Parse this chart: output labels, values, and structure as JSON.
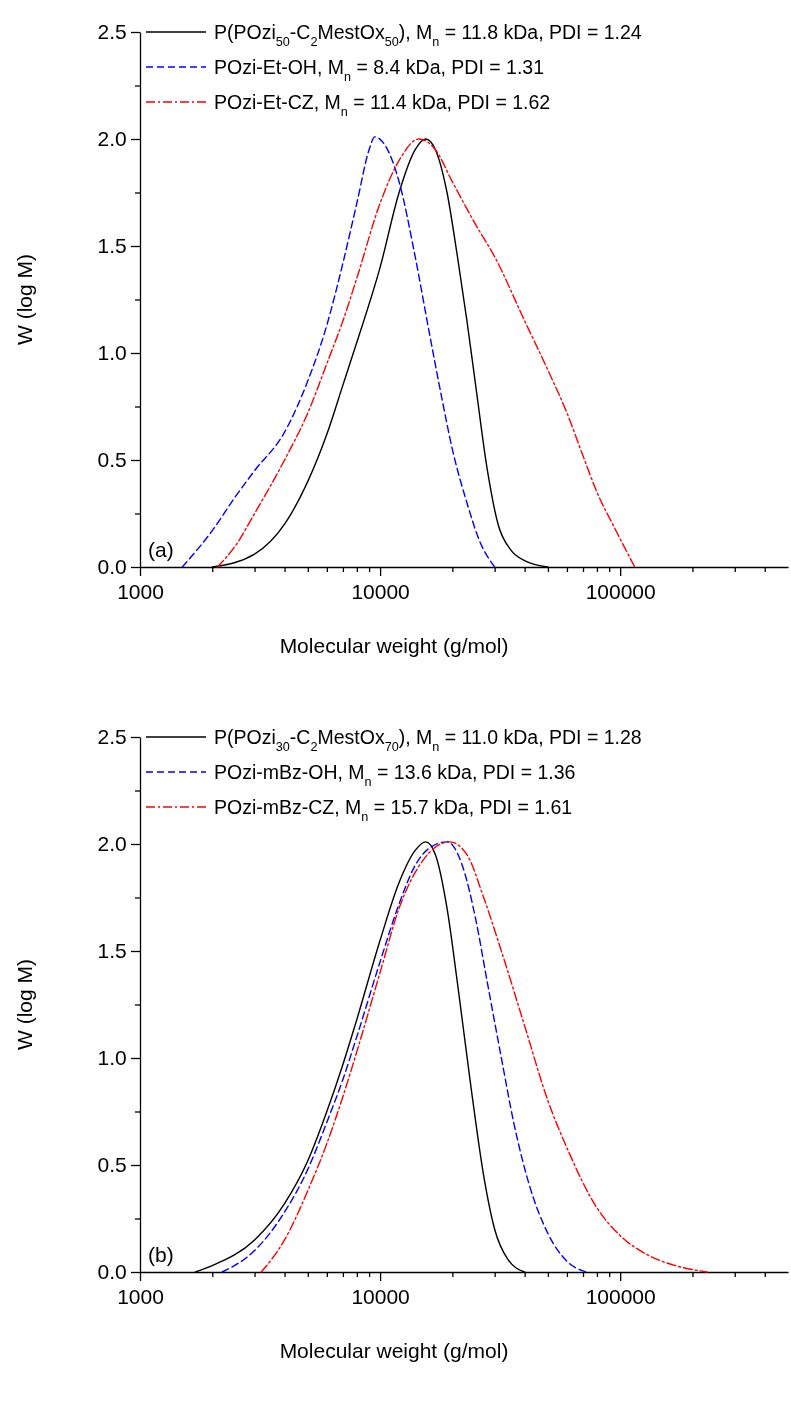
{
  "chart_data": [
    {
      "type": "line",
      "xlabel": "Molecular weight (g/mol)",
      "ylabel": "W (log M)",
      "log": "x",
      "xlim": [
        1000,
        500000
      ],
      "xticks": [
        1000,
        {
          "value": 2000,
          "label": null
        },
        {
          "value": 3000,
          "label": null
        },
        {
          "value": 4000,
          "label": null
        },
        {
          "value": 5000,
          "label": null
        },
        {
          "value": 6000,
          "label": null
        },
        {
          "value": 7000,
          "label": null
        },
        {
          "value": 8000,
          "label": null
        },
        {
          "value": 9000,
          "label": null
        },
        10000,
        {
          "value": 20000,
          "label": null
        },
        {
          "value": 30000,
          "label": null
        },
        {
          "value": 40000,
          "label": null
        },
        {
          "value": 50000,
          "label": null
        },
        {
          "value": 60000,
          "label": null
        },
        {
          "value": 70000,
          "label": null
        },
        {
          "value": 80000,
          "label": null
        },
        {
          "value": 90000,
          "label": null
        },
        100000,
        {
          "value": 200000,
          "label": null
        },
        {
          "value": 300000,
          "label": null
        },
        {
          "value": 400000,
          "label": null
        }
      ],
      "ylim": [
        0,
        2.5
      ],
      "yticks": [
        {
          "value": 0,
          "label": "0.0"
        },
        {
          "value": 0.25,
          "label": null
        },
        {
          "value": 0.5,
          "label": "0.5"
        },
        {
          "value": 0.75,
          "label": null
        },
        {
          "value": 1,
          "label": "1.0"
        },
        {
          "value": 1.25,
          "label": null
        },
        {
          "value": 1.5,
          "label": "1.5"
        },
        {
          "value": 1.75,
          "label": null
        },
        {
          "value": 2,
          "label": "2.0"
        },
        {
          "value": 2.25,
          "label": null
        },
        {
          "value": 2.5,
          "label": "2.5"
        }
      ],
      "grid": false,
      "legend": "top left",
      "marker": "none",
      "annotations": [
        "(a)"
      ],
      "series": [
        {
          "name": "P(POzi$_{50}$-C$_{2}$MestOx$_{50}$), M$_{n}$ = 11.8 kDa, PDI = 1.24",
          "color": "#000000",
          "line_style": "solid",
          "x": [
            2000,
            3000,
            4000,
            5000,
            6000,
            7000,
            8000,
            10000,
            12000,
            14000,
            15500,
            17000,
            19000,
            21000,
            23000,
            25000,
            28000,
            31000,
            35000,
            40000,
            50000
          ],
          "values": [
            0,
            0.06,
            0.2,
            0.4,
            0.62,
            0.85,
            1.05,
            1.4,
            1.75,
            1.95,
            2.0,
            1.95,
            1.75,
            1.45,
            1.15,
            0.85,
            0.45,
            0.2,
            0.08,
            0.03,
            0
          ]
        },
        {
          "name": "POzi-Et-OH, M$_{n}$ = 8.4 kDa, PDI = 1.31",
          "color": "#0000ff",
          "line_style": "dashed",
          "x": [
            1500,
            2000,
            2500,
            3000,
            4000,
            5000,
            6000,
            7000,
            8000,
            9000,
            9500,
            10500,
            12000,
            14000,
            16000,
            18000,
            20000,
            23000,
            26000,
            30000
          ],
          "values": [
            0,
            0.17,
            0.33,
            0.45,
            0.63,
            0.87,
            1.13,
            1.42,
            1.7,
            1.95,
            2.01,
            1.97,
            1.8,
            1.45,
            1.1,
            0.8,
            0.55,
            0.3,
            0.12,
            0
          ]
        },
        {
          "name": "POzi-Et-CZ,  M$_{n}$ = 11.4 kDa, PDI = 1.62",
          "color": "#ff0000",
          "line_style": "dashdot",
          "x": [
            2100,
            2500,
            3000,
            4000,
            5000,
            6000,
            7000,
            8000,
            10000,
            12000,
            14500,
            17000,
            20000,
            25000,
            30000,
            40000,
            50000,
            60000,
            70000,
            80000,
            95000,
            115000
          ],
          "values": [
            0,
            0.1,
            0.25,
            0.5,
            0.72,
            0.95,
            1.15,
            1.35,
            1.7,
            1.9,
            2.0,
            1.95,
            1.8,
            1.6,
            1.45,
            1.15,
            0.92,
            0.72,
            0.52,
            0.35,
            0.18,
            0
          ]
        }
      ]
    },
    {
      "type": "line",
      "xlabel": "Molecular weight (g/mol)",
      "ylabel": "W (log M)",
      "log": "x",
      "xlim": [
        1000,
        500000
      ],
      "xticks": [
        1000,
        {
          "value": 2000,
          "label": null
        },
        {
          "value": 3000,
          "label": null
        },
        {
          "value": 4000,
          "label": null
        },
        {
          "value": 5000,
          "label": null
        },
        {
          "value": 6000,
          "label": null
        },
        {
          "value": 7000,
          "label": null
        },
        {
          "value": 8000,
          "label": null
        },
        {
          "value": 9000,
          "label": null
        },
        10000,
        {
          "value": 20000,
          "label": null
        },
        {
          "value": 30000,
          "label": null
        },
        {
          "value": 40000,
          "label": null
        },
        {
          "value": 50000,
          "label": null
        },
        {
          "value": 60000,
          "label": null
        },
        {
          "value": 70000,
          "label": null
        },
        {
          "value": 80000,
          "label": null
        },
        {
          "value": 90000,
          "label": null
        },
        100000,
        {
          "value": 200000,
          "label": null
        },
        {
          "value": 300000,
          "label": null
        },
        {
          "value": 400000,
          "label": null
        }
      ],
      "ylim": [
        0,
        2.5
      ],
      "yticks": [
        {
          "value": 0,
          "label": "0.0"
        },
        {
          "value": 0.25,
          "label": null
        },
        {
          "value": 0.5,
          "label": "0.5"
        },
        {
          "value": 0.75,
          "label": null
        },
        {
          "value": 1,
          "label": "1.0"
        },
        {
          "value": 1.25,
          "label": null
        },
        {
          "value": 1.5,
          "label": "1.5"
        },
        {
          "value": 1.75,
          "label": null
        },
        {
          "value": 2,
          "label": "2.0"
        },
        {
          "value": 2.25,
          "label": null
        },
        {
          "value": 2.5,
          "label": "2.5"
        }
      ],
      "grid": false,
      "legend": "top left",
      "marker": "none",
      "annotations": [
        "(b)"
      ],
      "series": [
        {
          "name": "P(POzi$_{30}$-C$_{2}$MestOx$_{70}$), M$_{n}$ = 11.0 kDa, PDI = 1.28",
          "color": "#000000",
          "line_style": "solid",
          "x": [
            1700,
            2000,
            3000,
            4000,
            5000,
            6000,
            7000,
            8000,
            10000,
            12000,
            14000,
            15500,
            17000,
            19000,
            21000,
            24000,
            27000,
            30000,
            34000,
            40000
          ],
          "values": [
            0,
            0.03,
            0.15,
            0.32,
            0.52,
            0.75,
            0.97,
            1.18,
            1.55,
            1.82,
            1.97,
            2.01,
            1.95,
            1.7,
            1.35,
            0.85,
            0.45,
            0.2,
            0.06,
            0
          ]
        },
        {
          "name": "POzi-mBz-OH, M$_{n}$ = 13.6 kDa, PDI = 1.36",
          "color": "#0000ff",
          "line_style": "dashed",
          "x": [
            2200,
            3000,
            4000,
            5000,
            6000,
            7000,
            8000,
            10000,
            12000,
            14000,
            16000,
            19000,
            22000,
            25000,
            28000,
            32000,
            36000,
            42000,
            50000,
            60000,
            72000
          ],
          "values": [
            0,
            0.1,
            0.28,
            0.48,
            0.7,
            0.9,
            1.1,
            1.45,
            1.72,
            1.9,
            1.98,
            2.01,
            1.9,
            1.65,
            1.35,
            1.0,
            0.7,
            0.4,
            0.18,
            0.05,
            0
          ]
        },
        {
          "name": "POzi-mBz-CZ,  M$_{n}$ = 15.7 kDa, PDI = 1.61",
          "color": "#ff0000",
          "line_style": "dashdot",
          "x": [
            3200,
            4000,
            5000,
            6000,
            7000,
            8000,
            10000,
            12000,
            15000,
            19500,
            23000,
            27000,
            32000,
            40000,
            50000,
            60000,
            80000,
            100000,
            130000,
            170000,
            230000
          ],
          "values": [
            0,
            0.15,
            0.38,
            0.6,
            0.82,
            1.03,
            1.4,
            1.7,
            1.92,
            2.01,
            1.95,
            1.75,
            1.5,
            1.15,
            0.8,
            0.58,
            0.3,
            0.17,
            0.08,
            0.03,
            0
          ]
        }
      ]
    }
  ]
}
